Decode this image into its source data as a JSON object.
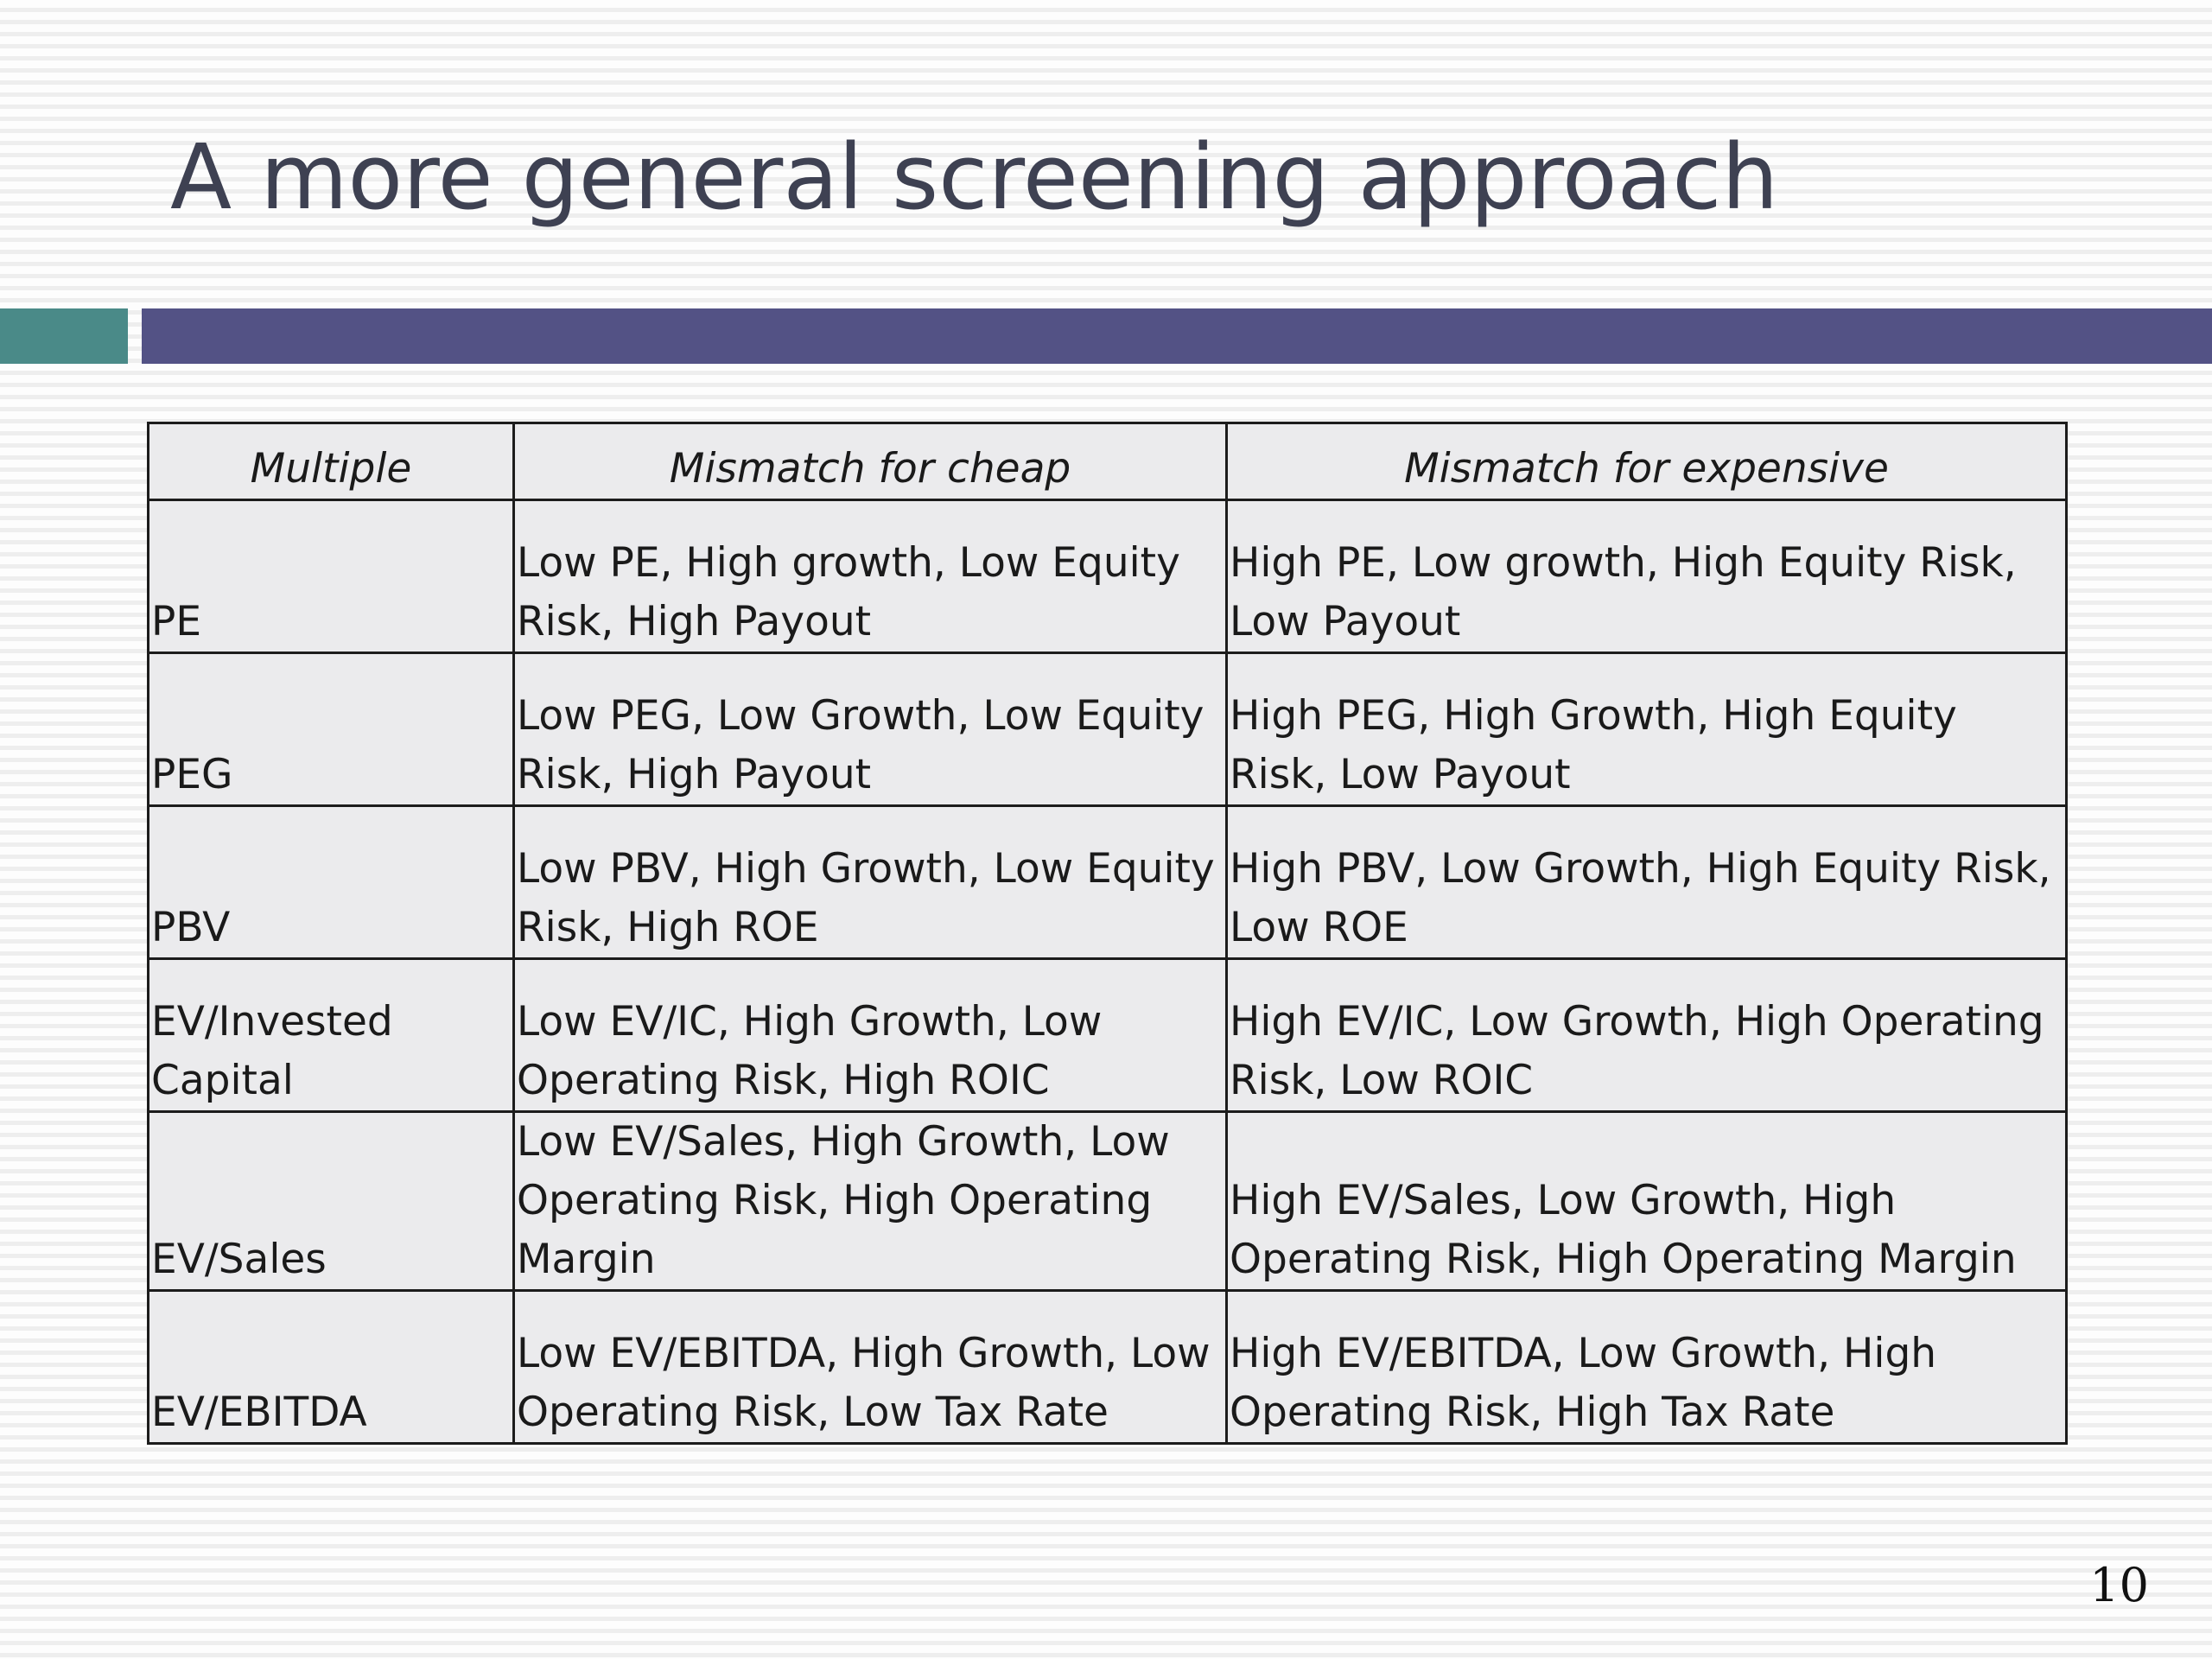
{
  "slide": {
    "title": "A more general screening approach",
    "page_number": "10",
    "colors": {
      "title_text": "#3e4152",
      "accent_bar_left": "#4a8a88",
      "accent_bar_main": "#535285",
      "table_fill": "#ebebed",
      "table_border": "#1c1c1c"
    }
  },
  "table": {
    "headers": [
      "Multiple",
      "Mismatch for cheap",
      "Mismatch for expensive"
    ],
    "rows": [
      {
        "multiple": "PE",
        "cheap": "Low PE, High growth, Low Equity Risk, High Payout",
        "expensive": "High PE, Low growth, High Equity Risk, Low Payout"
      },
      {
        "multiple": "PEG",
        "cheap": "Low PEG, Low Growth, Low Equity Risk, High Payout",
        "expensive": "High PEG, High Growth, High Equity Risk, Low Payout"
      },
      {
        "multiple": "PBV",
        "cheap": "Low PBV, High Growth, Low Equity Risk, High ROE",
        "expensive": "High PBV, Low Growth, High Equity Risk, Low ROE"
      },
      {
        "multiple": "EV/Invested Capital",
        "cheap": "Low EV/IC, High Growth, Low Operating Risk, High ROIC",
        "expensive": "High EV/IC, Low Growth, High Operating Risk, Low ROIC"
      },
      {
        "multiple": "EV/Sales",
        "cheap": "Low EV/Sales, High Growth, Low Operating Risk, High Operating Margin",
        "expensive": "High EV/Sales, Low Growth, High Operating Risk, High Operating Margin"
      },
      {
        "multiple": "EV/EBITDA",
        "cheap": "Low EV/EBITDA, High Growth, Low Operating Risk, Low Tax Rate",
        "expensive": "High EV/EBITDA, Low Growth, High Operating Risk, High Tax Rate"
      }
    ]
  }
}
